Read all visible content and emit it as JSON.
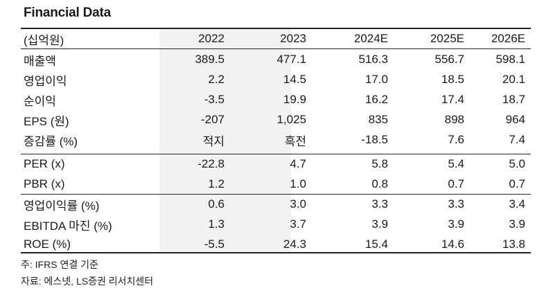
{
  "title": "Financial Data",
  "table": {
    "unit_label": "(십억원)",
    "years": [
      "2022",
      "2023",
      "2024E",
      "2025E",
      "2026E"
    ],
    "rows": [
      {
        "label": "매출액",
        "values": [
          "389.5",
          "477.1",
          "516.3",
          "556.7",
          "598.1"
        ]
      },
      {
        "label": "영업이익",
        "values": [
          "2.2",
          "14.5",
          "17.0",
          "18.5",
          "20.1"
        ]
      },
      {
        "label": "순이익",
        "values": [
          "-3.5",
          "19.9",
          "16.2",
          "17.4",
          "18.7"
        ]
      },
      {
        "label": "EPS (원)",
        "values": [
          "-207",
          "1,025",
          "835",
          "898",
          "964"
        ]
      },
      {
        "label": "증감률 (%)",
        "values": [
          "적지",
          "흑전",
          "-18.5",
          "7.6",
          "7.4"
        ]
      },
      {
        "label": "PER (x)",
        "values": [
          "-22.8",
          "4.7",
          "5.8",
          "5.4",
          "5.0"
        ]
      },
      {
        "label": "PBR (x)",
        "values": [
          "1.2",
          "1.0",
          "0.8",
          "0.7",
          "0.7"
        ]
      },
      {
        "label": "영업이익률 (%)",
        "values": [
          "0.6",
          "3.0",
          "3.3",
          "3.3",
          "3.4"
        ]
      },
      {
        "label": "EBITDA 마진 (%)",
        "values": [
          "1.3",
          "3.7",
          "3.9",
          "3.9",
          "3.9"
        ]
      },
      {
        "label": "ROE (%)",
        "values": [
          "-5.5",
          "24.3",
          "15.4",
          "14.6",
          "13.8"
        ]
      }
    ]
  },
  "notes": {
    "note1": "주: IFRS 연결 기준",
    "note2": "자료: 에스넷, LS증권 리서치센터"
  }
}
